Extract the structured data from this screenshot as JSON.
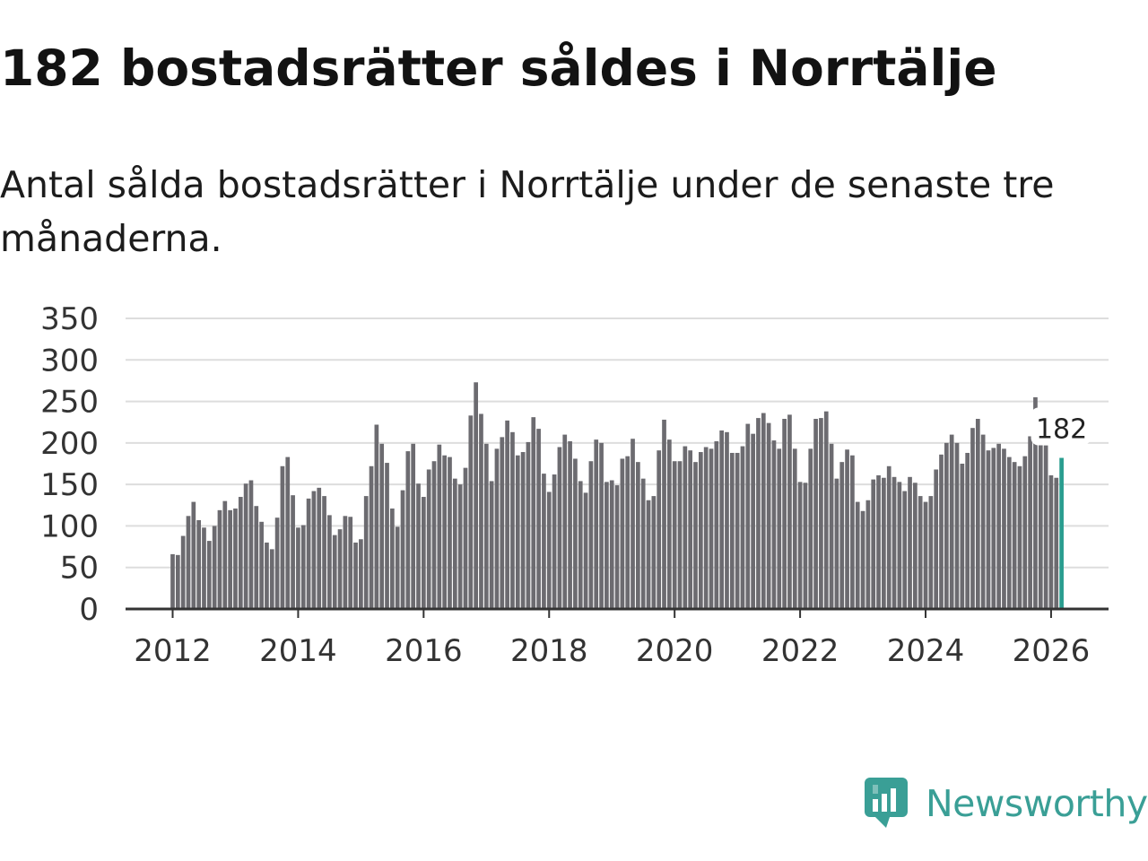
{
  "title": "182 bostadsrätter såldes i Norrtälje",
  "subtitle": "Antal sålda bostadsrätter i Norrtälje under de senaste tre månaderna.",
  "brand": {
    "name": "Newsworthy",
    "icon": "newsworthy-logo-icon",
    "color": "#3a9f96"
  },
  "chart_data": {
    "type": "bar",
    "title": "182 bostadsrätter såldes i Norrtälje",
    "xlabel": "",
    "ylabel": "",
    "ylim": [
      0,
      350
    ],
    "yticks": [
      "0",
      "50",
      "100",
      "150",
      "200",
      "250",
      "300",
      "350"
    ],
    "xticks": [
      "2012",
      "2014",
      "2016",
      "2018",
      "2020",
      "2022",
      "2024",
      "2026"
    ],
    "start": {
      "year": 2012,
      "month": 1
    },
    "bar_color": "#6c6b70",
    "highlight_color": "#2a9d8f",
    "grid": true,
    "annotation": {
      "label": "182",
      "index": 170
    },
    "values": [
      66,
      65,
      88,
      112,
      129,
      107,
      98,
      82,
      100,
      119,
      130,
      119,
      121,
      135,
      151,
      155,
      124,
      105,
      80,
      72,
      110,
      172,
      183,
      137,
      98,
      101,
      133,
      142,
      146,
      136,
      113,
      89,
      96,
      112,
      111,
      80,
      84,
      136,
      172,
      222,
      199,
      176,
      121,
      99,
      143,
      190,
      199,
      151,
      135,
      168,
      178,
      198,
      185,
      183,
      157,
      150,
      170,
      233,
      273,
      235,
      199,
      154,
      193,
      207,
      227,
      213,
      185,
      189,
      201,
      231,
      217,
      163,
      141,
      162,
      195,
      210,
      202,
      181,
      154,
      140,
      178,
      204,
      200,
      153,
      155,
      149,
      181,
      184,
      205,
      177,
      157,
      131,
      136,
      191,
      228,
      204,
      178,
      178,
      196,
      191,
      177,
      189,
      195,
      193,
      202,
      215,
      213,
      188,
      188,
      196,
      223,
      211,
      230,
      236,
      224,
      203,
      193,
      229,
      234,
      193,
      153,
      152,
      193,
      229,
      230,
      238,
      199,
      157,
      177,
      192,
      185,
      129,
      118,
      131,
      156,
      161,
      158,
      172,
      159,
      153,
      142,
      159,
      152,
      136,
      129,
      136,
      168,
      186,
      200,
      210,
      200,
      175,
      188,
      218,
      229,
      210,
      191,
      194,
      199,
      193,
      183,
      177,
      172,
      184,
      208,
      255,
      236,
      197,
      161,
      158,
      182
    ]
  }
}
